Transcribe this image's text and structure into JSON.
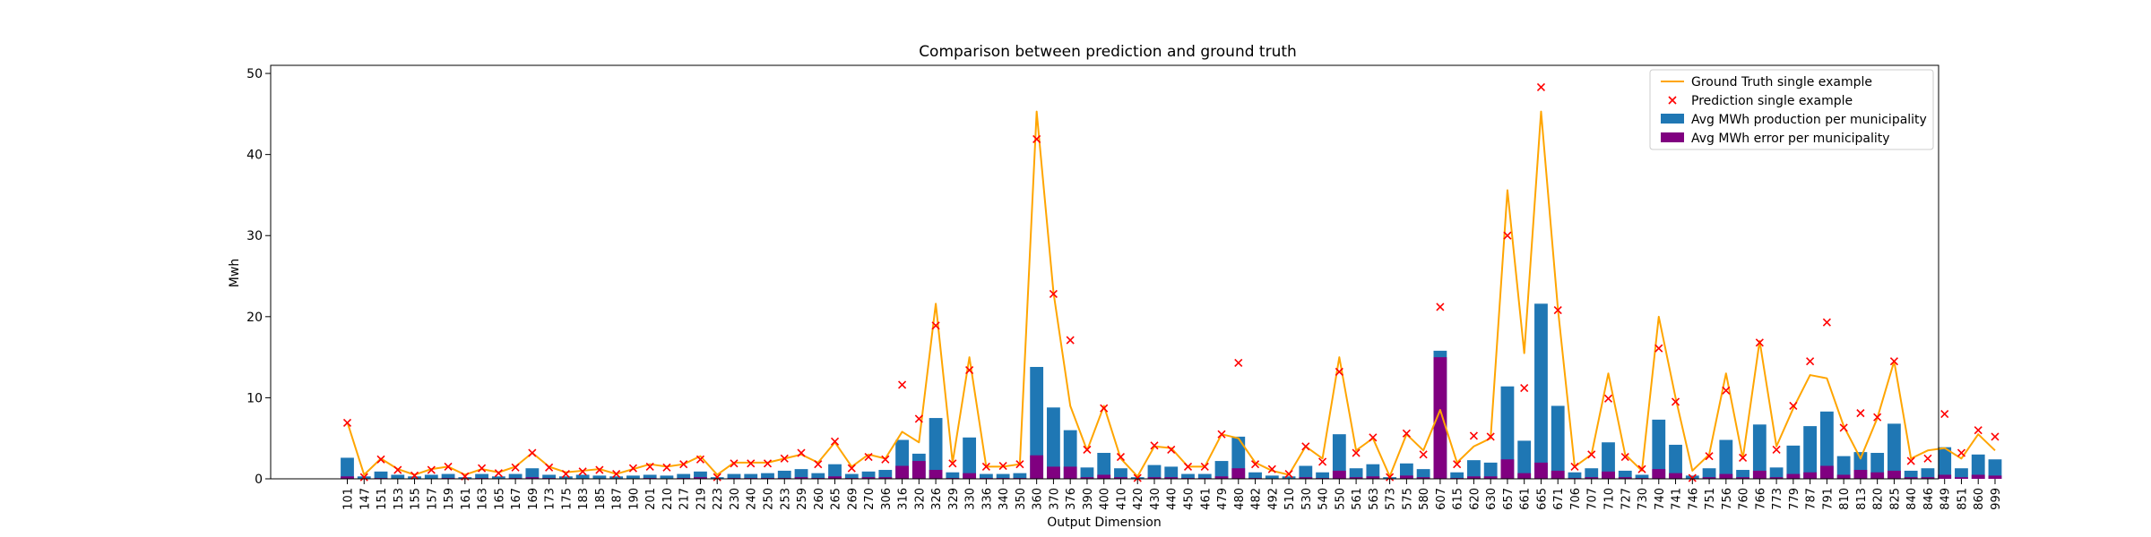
{
  "chart_data": {
    "type": "bar",
    "title": "Comparison between prediction and ground truth",
    "xlabel": "Output Dimension",
    "ylabel": "Mwh",
    "ylim": [
      0,
      51
    ],
    "yticks": [
      0,
      10,
      20,
      30,
      40,
      50
    ],
    "grid": false,
    "legend_position": "top-right",
    "categories": [
      "101",
      "147",
      "151",
      "153",
      "155",
      "157",
      "159",
      "161",
      "163",
      "165",
      "167",
      "169",
      "173",
      "175",
      "183",
      "185",
      "187",
      "190",
      "201",
      "210",
      "217",
      "219",
      "223",
      "230",
      "240",
      "250",
      "253",
      "259",
      "260",
      "265",
      "269",
      "270",
      "306",
      "316",
      "320",
      "326",
      "329",
      "330",
      "336",
      "340",
      "350",
      "360",
      "370",
      "376",
      "390",
      "400",
      "410",
      "420",
      "430",
      "440",
      "450",
      "461",
      "479",
      "480",
      "482",
      "492",
      "510",
      "530",
      "540",
      "550",
      "561",
      "563",
      "573",
      "575",
      "580",
      "607",
      "615",
      "620",
      "630",
      "657",
      "661",
      "665",
      "671",
      "706",
      "707",
      "710",
      "727",
      "730",
      "740",
      "741",
      "746",
      "751",
      "756",
      "760",
      "766",
      "773",
      "779",
      "787",
      "791",
      "810",
      "813",
      "820",
      "825",
      "840",
      "846",
      "849",
      "851",
      "860",
      "999"
    ],
    "series": [
      {
        "name": "Ground Truth single example",
        "type": "line",
        "color": "#ffa500",
        "values": [
          7,
          0.5,
          2.5,
          1.2,
          0.5,
          1.2,
          1.5,
          0.5,
          1.2,
          0.8,
          1.5,
          3.2,
          1.5,
          0.8,
          1,
          1.2,
          0.6,
          1.2,
          1.8,
          1.5,
          1.8,
          2.8,
          0.5,
          2,
          2,
          2,
          2.5,
          3,
          2,
          4.5,
          1.5,
          3,
          2.5,
          5.8,
          4.5,
          21.6,
          2,
          15,
          1.5,
          1.5,
          1.8,
          45.3,
          23,
          9,
          3.5,
          9,
          2.5,
          0.3,
          4,
          3.8,
          1.5,
          1.5,
          5.5,
          5,
          2,
          1,
          0.5,
          4,
          2.5,
          15,
          3.5,
          5,
          0.3,
          5.5,
          3.5,
          8.5,
          2,
          4,
          5,
          35.6,
          15.5,
          45.3,
          21,
          1.5,
          3,
          13,
          3,
          1,
          20,
          10,
          1,
          3,
          13,
          2.5,
          17,
          4,
          8.7,
          12.8,
          12.4,
          6.5,
          2.5,
          7.5,
          14.5,
          2.5,
          3.5,
          3.8,
          2.5,
          5.5,
          3.5
        ]
      },
      {
        "name": "Prediction single example",
        "type": "scatter",
        "color": "#ff0000",
        "values": [
          6.9,
          0.2,
          2.4,
          1.1,
          0.4,
          1.1,
          1.5,
          0.3,
          1.3,
          0.7,
          1.4,
          3.2,
          1.4,
          0.6,
          0.9,
          1.1,
          0.6,
          1.3,
          1.5,
          1.4,
          1.8,
          2.4,
          0.2,
          1.9,
          1.9,
          1.9,
          2.5,
          3.2,
          1.8,
          4.6,
          1.3,
          2.7,
          2.4,
          11.6,
          7.4,
          18.9,
          1.9,
          13.4,
          1.5,
          1.6,
          1.8,
          41.9,
          22.8,
          17.1,
          3.6,
          8.7,
          2.7,
          0.1,
          4.1,
          3.6,
          1.5,
          1.5,
          5.5,
          14.3,
          1.8,
          1.2,
          0.6,
          4,
          2.1,
          13.2,
          3.2,
          5.1,
          0.2,
          5.6,
          3,
          21.2,
          1.8,
          5.3,
          5.2,
          30,
          11.2,
          48.3,
          20.8,
          1.5,
          3,
          9.9,
          2.7,
          1.2,
          16.1,
          9.5,
          0.1,
          2.8,
          10.9,
          2.6,
          16.8,
          3.6,
          9,
          14.5,
          19.3,
          6.3,
          8.1,
          7.6,
          14.5,
          2.2,
          2.5,
          8,
          3.2,
          6,
          5.2
        ]
      },
      {
        "name": "Avg MWh production per municipality",
        "type": "bar",
        "color": "#1f77b4",
        "values": [
          2.6,
          0.3,
          0.9,
          0.5,
          0.3,
          0.5,
          0.6,
          0.2,
          0.6,
          0.3,
          0.6,
          1.3,
          0.5,
          0.3,
          0.5,
          0.4,
          0.3,
          0.4,
          0.5,
          0.4,
          0.6,
          0.9,
          0.2,
          0.6,
          0.6,
          0.7,
          1,
          1.2,
          0.7,
          1.8,
          0.6,
          0.9,
          1.1,
          4.8,
          3.1,
          7.5,
          0.8,
          5.1,
          0.6,
          0.6,
          0.7,
          13.8,
          8.8,
          6,
          1.4,
          3.2,
          1.3,
          0.2,
          1.7,
          1.5,
          0.6,
          0.6,
          2.2,
          5.2,
          0.8,
          0.4,
          0.3,
          1.6,
          0.8,
          5.5,
          1.3,
          1.8,
          0.2,
          1.9,
          1.2,
          15.8,
          0.8,
          2.3,
          2,
          11.4,
          4.7,
          21.6,
          9,
          0.8,
          1.3,
          4.5,
          1,
          0.5,
          7.3,
          4.2,
          0.4,
          1.3,
          4.8,
          1.1,
          6.7,
          1.4,
          4.1,
          6.5,
          8.3,
          2.8,
          3.3,
          3.2,
          6.8,
          1,
          1.3,
          3.9,
          1.3,
          3,
          2.4
        ]
      },
      {
        "name": "Avg MWh error per municipality",
        "type": "bar",
        "color": "#800080",
        "values": [
          0.3,
          0.05,
          0.1,
          0.05,
          0.05,
          0.05,
          0.1,
          0.05,
          0.1,
          0.05,
          0.1,
          0.2,
          0.1,
          0.05,
          0.05,
          0.05,
          0.05,
          0.05,
          0.1,
          0.05,
          0.1,
          0.2,
          0.05,
          0.1,
          0.1,
          0.1,
          0.1,
          0.2,
          0.1,
          0.3,
          0.1,
          0.2,
          0.2,
          1.6,
          2.2,
          1.1,
          0.1,
          0.7,
          0.1,
          0.1,
          0.1,
          2.9,
          1.5,
          1.5,
          0.2,
          0.5,
          0.2,
          0.05,
          0.2,
          0.2,
          0.1,
          0.1,
          0.3,
          1.3,
          0.1,
          0.05,
          0.05,
          0.2,
          0.1,
          1,
          0.2,
          0.3,
          0.05,
          0.4,
          0.2,
          15,
          0.1,
          0.3,
          0.3,
          2.4,
          0.7,
          2,
          1,
          0.1,
          0.2,
          0.9,
          0.2,
          0.1,
          1.2,
          0.7,
          0.05,
          0.2,
          0.6,
          0.2,
          1,
          0.2,
          0.6,
          0.8,
          1.6,
          0.5,
          1.1,
          0.8,
          1,
          0.2,
          0.2,
          0.5,
          0.2,
          0.5,
          0.4
        ]
      }
    ]
  }
}
